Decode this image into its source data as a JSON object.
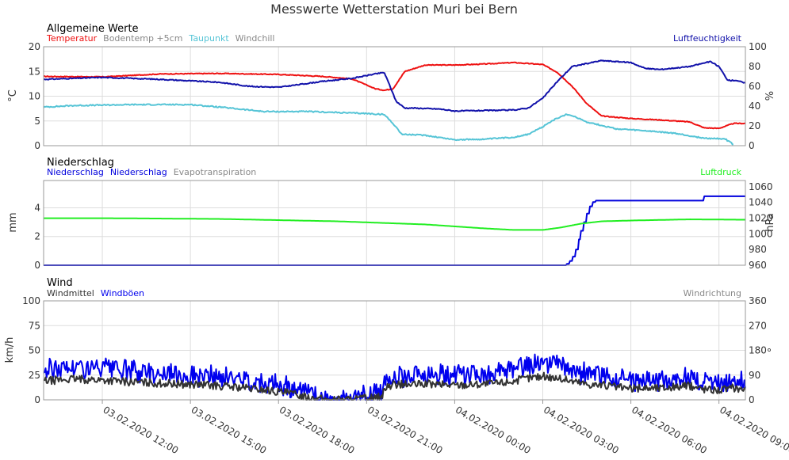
{
  "title": "Messwerte Wetterstation Muri bei Bern",
  "colors": {
    "temperatur": "#ee1111",
    "bodentemp": "#888888",
    "taupunkt": "#55c4d6",
    "windchill": "#888888",
    "luftfeuchtigkeit": "#1111aa",
    "niederschlag": "#0000dd",
    "evapo": "#888888",
    "luftdruck": "#22ee22",
    "windmittel": "#333333",
    "windboeen": "#0000ee",
    "windrichtung": "#888888",
    "grid": "#dddddd",
    "frame": "#999999"
  },
  "x_axis": {
    "start_hour": 10.0,
    "end_hour": 33.9,
    "ticks": [
      {
        "hour": 12,
        "label": "03.02.2020 12:00"
      },
      {
        "hour": 15,
        "label": "03.02.2020 15:00"
      },
      {
        "hour": 18,
        "label": "03.02.2020 18:00"
      },
      {
        "hour": 21,
        "label": "03.02.2020 21:00"
      },
      {
        "hour": 24,
        "label": "04.02.2020 00:00"
      },
      {
        "hour": 27,
        "label": "04.02.2020 03:00"
      },
      {
        "hour": 30,
        "label": "04.02.2020 06:00"
      },
      {
        "hour": 33,
        "label": "04.02.2020 09:00"
      }
    ]
  },
  "chart_data": [
    {
      "type": "line",
      "title": "Allgemeine Werte",
      "legend_left": [
        {
          "name": "Temperatur",
          "color_key": "temperatur"
        },
        {
          "name": "Bodentemp +5cm",
          "color_key": "bodentemp"
        },
        {
          "name": "Taupunkt",
          "color_key": "taupunkt"
        },
        {
          "name": "Windchill",
          "color_key": "windchill"
        }
      ],
      "legend_right": [
        {
          "name": "Luftfeuchtigkeit",
          "color_key": "luftfeuchtigkeit"
        }
      ],
      "ylabel_left": "°C",
      "ylabel_right": "%",
      "ylim_left": [
        0,
        20
      ],
      "ylim_right": [
        0,
        100
      ],
      "yticks_left": [
        "0",
        "5",
        "10",
        "15",
        "20"
      ],
      "yticks_right": [
        "0",
        "20",
        "40",
        "60",
        "80",
        "100"
      ],
      "series": [
        {
          "name": "Temperatur",
          "axis": "left",
          "color_key": "temperatur",
          "noise": 0.08,
          "x": [
            10.0,
            12.0,
            14.0,
            16.0,
            18.0,
            19.5,
            20.5,
            21.3,
            21.6,
            21.9,
            22.3,
            23.0,
            24.0,
            25.0,
            26.0,
            27.0,
            27.5,
            28.0,
            28.5,
            29.0,
            30.0,
            31.0,
            32.0,
            32.5,
            33.0,
            33.5,
            33.9
          ],
          "y": [
            14.0,
            13.9,
            14.5,
            14.6,
            14.4,
            14.0,
            13.5,
            11.5,
            11.2,
            11.5,
            15.0,
            16.3,
            16.3,
            16.5,
            16.8,
            16.4,
            14.8,
            12.0,
            8.5,
            6.0,
            5.5,
            5.2,
            4.8,
            3.6,
            3.5,
            4.5,
            4.5
          ]
        },
        {
          "name": "Taupunkt",
          "axis": "left",
          "color_key": "taupunkt",
          "noise": 0.12,
          "x": [
            10.0,
            11.0,
            13.0,
            15.0,
            16.0,
            17.5,
            19.0,
            20.5,
            21.0,
            21.6,
            21.9,
            22.2,
            23.0,
            24.0,
            25.0,
            26.0,
            26.5,
            27.0,
            27.3,
            27.8,
            28.0,
            28.5,
            29.5,
            30.5,
            31.5,
            32.5,
            33.2,
            33.5
          ],
          "y": [
            7.8,
            8.1,
            8.3,
            8.3,
            7.8,
            6.9,
            6.9,
            6.6,
            6.5,
            6.3,
            4.5,
            2.3,
            2.1,
            1.2,
            1.3,
            1.7,
            2.3,
            3.8,
            5.0,
            6.3,
            6.1,
            4.8,
            3.4,
            3.0,
            2.5,
            1.5,
            1.4,
            0.2
          ]
        },
        {
          "name": "Luftfeuchtigkeit",
          "axis": "right",
          "color_key": "luftfeuchtigkeit",
          "noise": 0.5,
          "x": [
            10.0,
            12.0,
            14.0,
            16.0,
            17.0,
            18.0,
            19.5,
            20.5,
            21.2,
            21.6,
            21.8,
            22.0,
            22.3,
            22.6,
            23.5,
            24.0,
            25.0,
            26.0,
            26.5,
            27.0,
            27.5,
            28.0,
            29.0,
            30.0,
            30.5,
            31.0,
            32.0,
            32.7,
            33.0,
            33.3,
            33.6,
            33.9
          ],
          "y": [
            67.0,
            69.0,
            67.0,
            64.0,
            60.0,
            59.0,
            65.0,
            68.0,
            72.0,
            74.0,
            60.0,
            45.0,
            38.0,
            38.0,
            37.0,
            35.0,
            35.5,
            36.0,
            38.0,
            48.0,
            65.0,
            80.0,
            86.0,
            84.0,
            78.0,
            77.0,
            80.0,
            85.0,
            80.0,
            66.0,
            66.0,
            63.0
          ]
        }
      ]
    },
    {
      "type": "line",
      "title": "Niederschlag",
      "legend_left": [
        {
          "name": "Niederschlag",
          "color_key": "niederschlag"
        },
        {
          "name": "Niederschlag",
          "color_key": "niederschlag"
        },
        {
          "name": "Evapotranspiration",
          "color_key": "evapo"
        }
      ],
      "legend_right": [
        {
          "name": "Luftdruck",
          "color_key": "luftdruck"
        }
      ],
      "ylabel_left": "mm",
      "ylabel_right": "hPa",
      "ylim_left": [
        0,
        5.9
      ],
      "ylim_right": [
        960,
        1068
      ],
      "yticks_left": [
        "0",
        "2",
        "4"
      ],
      "yticks_left_values": [
        0,
        2,
        4
      ],
      "yticks_right": [
        "960",
        "980",
        "1000",
        "1020",
        "1040",
        "1060"
      ],
      "yticks_right_values": [
        960,
        980,
        1000,
        1020,
        1040,
        1060
      ],
      "series": [
        {
          "name": "Niederschlag",
          "axis": "left",
          "color_key": "niederschlag",
          "step": true,
          "x": [
            10.0,
            27.7,
            27.8,
            27.9,
            28.0,
            28.1,
            28.2,
            28.3,
            28.4,
            28.5,
            28.6,
            28.7,
            28.8,
            28.9,
            29.0,
            29.2,
            29.4,
            29.6,
            29.8,
            30.0,
            30.5,
            31.0,
            31.5,
            32.0,
            32.3,
            32.5,
            32.7,
            33.0,
            33.5,
            33.9
          ],
          "y": [
            0.0,
            0.0,
            0.1,
            0.3,
            0.6,
            1.1,
            1.8,
            2.4,
            3.0,
            3.6,
            4.1,
            4.4,
            4.5,
            4.5,
            4.5,
            4.5,
            4.5,
            4.5,
            4.5,
            4.5,
            4.5,
            4.5,
            4.5,
            4.5,
            4.5,
            4.8,
            4.8,
            4.8,
            4.8,
            4.8
          ]
        },
        {
          "name": "Luftdruck",
          "axis": "right",
          "color_key": "luftdruck",
          "noise": 0,
          "x": [
            10.0,
            12.0,
            16.0,
            20.0,
            23.0,
            25.0,
            26.0,
            27.0,
            27.6,
            28.3,
            29.0,
            30.0,
            32.0,
            33.9
          ],
          "y": [
            1020.0,
            1020.0,
            1019.0,
            1016.0,
            1012.0,
            1007.0,
            1005.0,
            1005.0,
            1008.0,
            1013.0,
            1016.0,
            1017.0,
            1018.5,
            1018.0
          ]
        }
      ]
    },
    {
      "type": "line",
      "title": "Wind",
      "legend_left": [
        {
          "name": "Windmittel",
          "color_key": "windmittel"
        },
        {
          "name": "Windböen",
          "color_key": "windboeen"
        }
      ],
      "legend_right": [
        {
          "name": "Windrichtung",
          "color_key": "windrichtung"
        }
      ],
      "ylabel_left": "km/h",
      "ylabel_right": "°",
      "ylim_left": [
        0,
        100
      ],
      "ylim_right": [
        0,
        360
      ],
      "yticks_left": [
        "0",
        "25",
        "50",
        "75",
        "100"
      ],
      "yticks_right": [
        "0",
        "90",
        "180",
        "270",
        "360"
      ],
      "series": [
        {
          "name": "Windböen",
          "axis": "left",
          "color_key": "windboeen",
          "noise": 8,
          "clip0": true,
          "x": [
            10.0,
            11.0,
            12.0,
            13.0,
            14.5,
            15.5,
            16.5,
            17.5,
            18.5,
            19.0,
            19.5,
            20.0,
            20.5,
            21.0,
            21.5,
            21.7,
            22.0,
            22.5,
            23.0,
            24.0,
            25.0,
            25.5,
            26.0,
            26.5,
            27.0,
            27.5,
            28.0,
            28.5,
            29.0,
            29.5,
            30.0,
            30.5,
            31.0,
            31.5,
            32.0,
            32.5,
            33.0,
            33.5,
            33.9
          ],
          "y": [
            30.0,
            33.0,
            31.0,
            29.0,
            26.0,
            24.0,
            22.0,
            18.0,
            12.0,
            7.0,
            2.0,
            1.0,
            2.0,
            4.0,
            6.0,
            22.0,
            25.0,
            24.0,
            26.0,
            25.0,
            26.0,
            28.0,
            30.0,
            34.0,
            38.0,
            35.0,
            30.0,
            26.0,
            25.0,
            22.0,
            18.0,
            19.0,
            20.0,
            21.0,
            24.0,
            18.0,
            17.0,
            20.0,
            18.0
          ]
        },
        {
          "name": "Windmittel",
          "axis": "left",
          "color_key": "windmittel",
          "noise": 4,
          "clip0": true,
          "x": [
            10.0,
            11.0,
            12.0,
            13.0,
            14.5,
            15.5,
            16.5,
            17.5,
            18.5,
            19.0,
            19.5,
            20.0,
            20.5,
            21.0,
            21.5,
            21.7,
            22.0,
            22.5,
            23.0,
            24.0,
            25.0,
            25.5,
            26.0,
            26.5,
            27.0,
            27.5,
            28.0,
            28.5,
            29.0,
            29.5,
            30.0,
            30.5,
            31.0,
            31.5,
            32.0,
            32.5,
            33.0,
            33.5,
            33.9
          ],
          "y": [
            19.0,
            21.0,
            20.0,
            18.0,
            16.0,
            15.0,
            13.0,
            10.0,
            6.0,
            3.0,
            0.5,
            0.3,
            0.5,
            2.0,
            3.0,
            14.0,
            16.0,
            15.0,
            16.0,
            15.0,
            16.0,
            17.0,
            19.0,
            22.0,
            24.0,
            22.0,
            19.0,
            16.0,
            15.0,
            13.0,
            11.0,
            12.0,
            12.0,
            13.0,
            14.0,
            11.0,
            10.0,
            12.0,
            11.0
          ]
        }
      ]
    }
  ]
}
